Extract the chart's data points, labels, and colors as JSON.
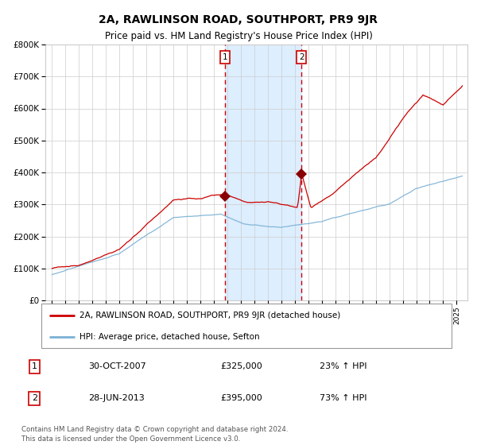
{
  "title": "2A, RAWLINSON ROAD, SOUTHPORT, PR9 9JR",
  "subtitle": "Price paid vs. HM Land Registry's House Price Index (HPI)",
  "legend_line1": "2A, RAWLINSON ROAD, SOUTHPORT, PR9 9JR (detached house)",
  "legend_line2": "HPI: Average price, detached house, Sefton",
  "transaction1_label": "1",
  "transaction1_date": "30-OCT-2007",
  "transaction1_price": 325000,
  "transaction1_pct": "23% ↑ HPI",
  "transaction2_label": "2",
  "transaction2_date": "28-JUN-2013",
  "transaction2_price": 395000,
  "transaction2_pct": "73% ↑ HPI",
  "footer": "Contains HM Land Registry data © Crown copyright and database right 2024.\nThis data is licensed under the Open Government Licence v3.0.",
  "red_color": "#cc0000",
  "blue_color": "#7ab0d4",
  "shading_color": "#ddeeff",
  "grid_color": "#cccccc",
  "marker_color": "#880000",
  "dashed_color": "#cc0000",
  "background_color": "#ffffff",
  "ylim": [
    0,
    800000
  ],
  "transaction1_x": 2007.83,
  "transaction2_x": 2013.49,
  "xlim_min": 1994.5,
  "xlim_max": 2025.8
}
